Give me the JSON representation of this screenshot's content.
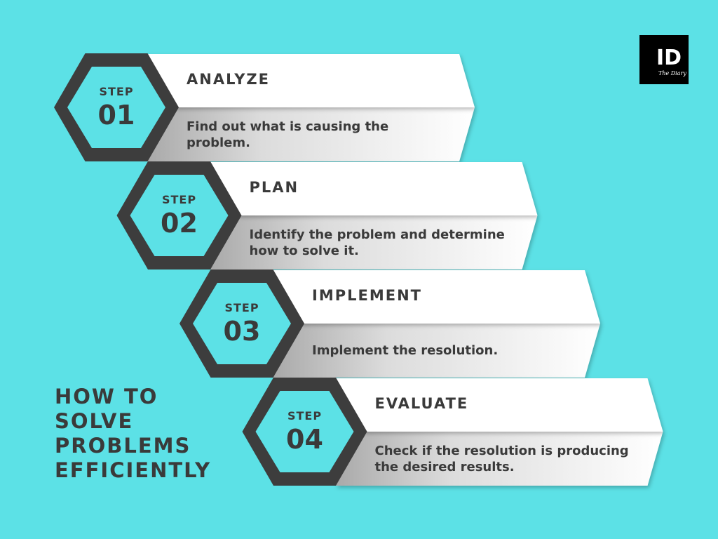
{
  "title": "HOW TO SOLVE PROBLEMS EFFICIENTLY",
  "step_word": "STEP",
  "steps": [
    {
      "number": "01",
      "title": "ANALYZE",
      "description": "Find out what is causing the problem."
    },
    {
      "number": "02",
      "title": "PLAN",
      "description": "Identify the problem and determine how to solve it."
    },
    {
      "number": "03",
      "title": "IMPLEMENT",
      "description": "Implement the resolution."
    },
    {
      "number": "04",
      "title": "EVALUATE",
      "description": "Check if the resolution is producing the desired results."
    }
  ],
  "logo": {
    "monogram": "ID",
    "script": "The Diary",
    "icon": "brand-logo-icon"
  },
  "colors": {
    "background": "#5ce1e6",
    "hexagon": "#3d3d3d",
    "hex_fill": "#5ce1e6",
    "text": "#3a3a3a",
    "banner": "#ffffff",
    "banner_shade": "#c8c8c8",
    "logo_bg": "#000000",
    "logo_fg": "#ffffff"
  }
}
